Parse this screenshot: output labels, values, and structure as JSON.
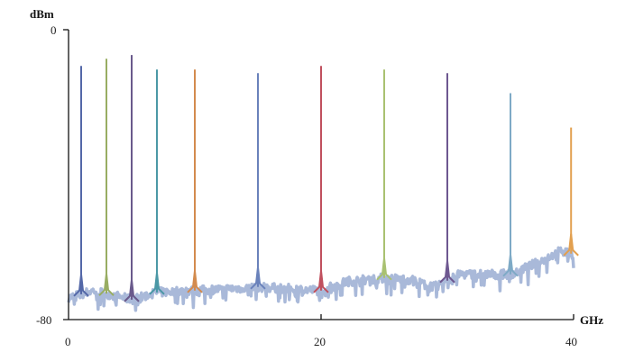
{
  "chart_data": {
    "type": "line",
    "xlabel": "GHz",
    "ylabel": "dBm",
    "xlim": [
      0,
      40
    ],
    "ylim": [
      -80,
      0
    ],
    "x_ticks": [
      "0",
      "20",
      "40"
    ],
    "y_ticks": [
      "0",
      "-80"
    ],
    "grid": false,
    "legend": "none",
    "noise_floor": {
      "color": "#a9b9d9",
      "x": [
        0,
        2,
        5,
        7,
        10,
        15,
        20,
        22,
        25,
        27,
        29,
        31,
        35,
        37,
        39,
        40
      ],
      "y": [
        -74,
        -72,
        -74.5,
        -72.5,
        -72,
        -71,
        -72,
        -69.5,
        -68.5,
        -69,
        -71,
        -67.5,
        -67.5,
        -64.5,
        -61,
        -62
      ]
    },
    "series": [
      {
        "x": 1,
        "peak": -10,
        "color": "#5468a8"
      },
      {
        "x": 3,
        "peak": -8,
        "color": "#98ad62"
      },
      {
        "x": 5,
        "peak": -7,
        "color": "#6a5a8c"
      },
      {
        "x": 7,
        "peak": -11,
        "color": "#4b98a6"
      },
      {
        "x": 10,
        "peak": -11,
        "color": "#d38b4e"
      },
      {
        "x": 15,
        "peak": -12,
        "color": "#6a82bb"
      },
      {
        "x": 20,
        "peak": -10,
        "color": "#c0505e"
      },
      {
        "x": 25,
        "peak": -11,
        "color": "#a9c171"
      },
      {
        "x": 30,
        "peak": -12,
        "color": "#6e5890"
      },
      {
        "x": 35,
        "peak": -17.5,
        "color": "#7eaac6"
      },
      {
        "x": 39.8,
        "peak": -27,
        "color": "#e2a050"
      }
    ]
  }
}
